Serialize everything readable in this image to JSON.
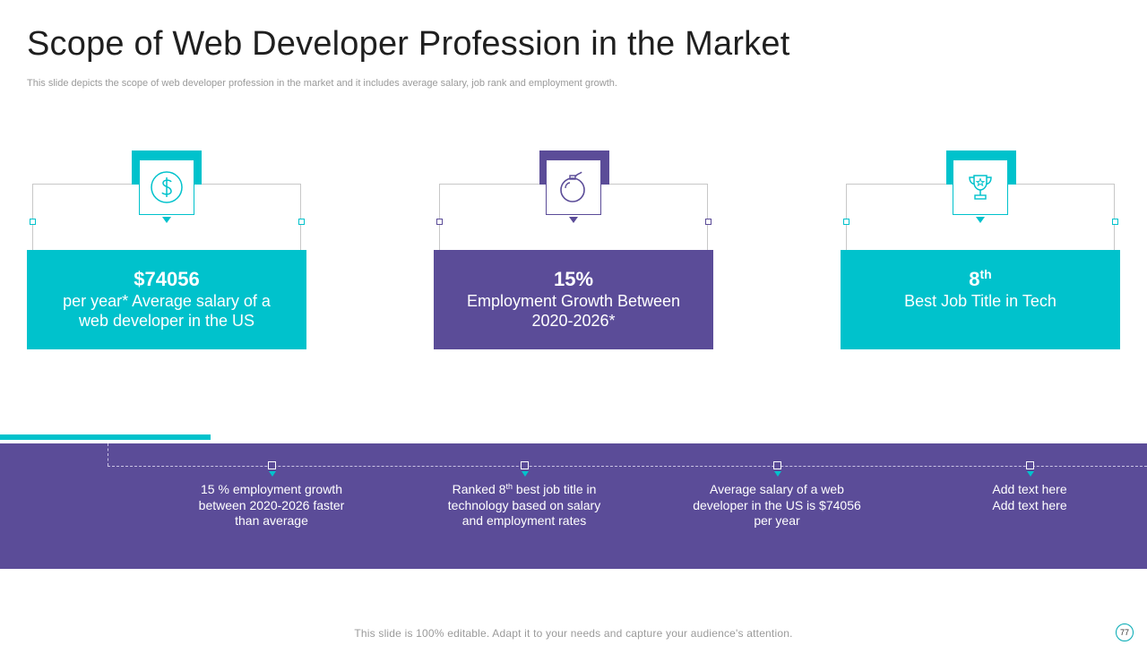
{
  "title": "Scope of Web Developer Profession in the Market",
  "subtitle": "This slide depicts the scope of web developer profession in the market and it includes average salary, job rank and employment growth.",
  "cards": [
    {
      "icon": "dollar-icon",
      "value": "$74056",
      "value_sup": "",
      "desc": "per year* Average salary of a web developer in the US",
      "color": "#00c2cc"
    },
    {
      "icon": "bomb-icon",
      "value": "15%",
      "value_sup": "",
      "desc": "Employment Growth Between 2020-2026*",
      "color": "#5b4c98"
    },
    {
      "icon": "trophy-icon",
      "value": "8",
      "value_sup": "th",
      "desc": "Best Job Title in Tech",
      "color": "#00c2cc"
    }
  ],
  "timeline": [
    {
      "text_a": "15 % employment growth between 2020-2026 faster than average",
      "sup": "",
      "text_b": ""
    },
    {
      "text_a": "Ranked 8",
      "sup": "th",
      "text_b": " best job title in technology based on salary and employment rates"
    },
    {
      "text_a": "Average salary of a web developer in the US is $74056 per year",
      "sup": "",
      "text_b": ""
    },
    {
      "text_a": "Add text here Add text here",
      "sup": "",
      "text_b": ""
    }
  ],
  "footer": "This slide is 100% editable. Adapt it to your needs and capture your audience's attention.",
  "page_number": "77",
  "colors": {
    "teal": "#00c2cc",
    "purple": "#5b4c98"
  }
}
